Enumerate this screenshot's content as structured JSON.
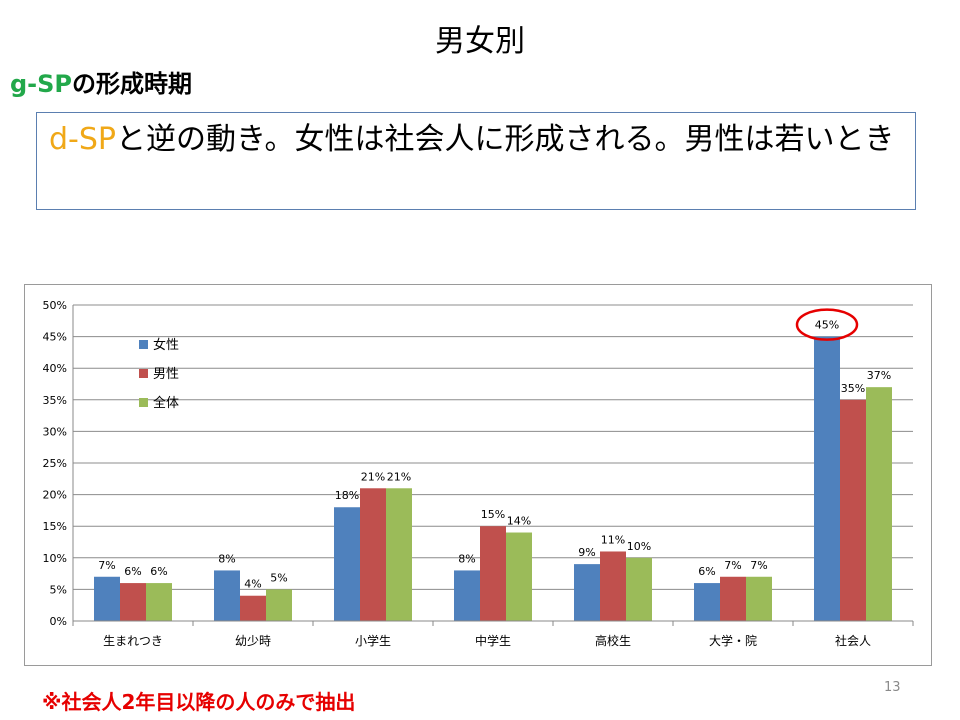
{
  "slide": {
    "title": "男女別",
    "heading_highlight": "g-SP",
    "heading_rest": "の形成時期",
    "callout_highlight": "d-SP",
    "callout_rest": "と逆の動き。女性は社会人に形成される。男性は若いとき",
    "footnote": "※社会人2年目以降の人のみで抽出",
    "page_number": "13"
  },
  "chart_data": {
    "type": "bar",
    "categories": [
      "生まれつき",
      "幼少時",
      "小学生",
      "中学生",
      "高校生",
      "大学・院",
      "社会人"
    ],
    "series": [
      {
        "name": "女性",
        "color": "#4f81bd",
        "values": [
          7,
          8,
          18,
          8,
          9,
          6,
          45
        ],
        "labels": [
          "7%",
          "8%",
          "18%",
          "8%",
          "9%",
          "6%",
          "45%"
        ]
      },
      {
        "name": "男性",
        "color": "#c0504d",
        "values": [
          6,
          4,
          21,
          15,
          11,
          7,
          35
        ],
        "labels": [
          "6%",
          "4%",
          "21%",
          "15%",
          "11%",
          "7%",
          "35%"
        ]
      },
      {
        "name": "全体",
        "color": "#9bbb59",
        "values": [
          6,
          5,
          21,
          14,
          10,
          7,
          37
        ],
        "labels": [
          "6%",
          "5%",
          "21%",
          "14%",
          "10%",
          "7%",
          "37%"
        ]
      }
    ],
    "ylim": [
      0,
      50
    ],
    "yticks": [
      "0%",
      "5%",
      "10%",
      "15%",
      "20%",
      "25%",
      "30%",
      "35%",
      "40%",
      "45%",
      "50%"
    ],
    "grid": true,
    "legend_position": "top-left",
    "highlight": "社会人 女性 45% circled in red",
    "highlight_color": "#e60000",
    "xlabel": "",
    "ylabel": ""
  }
}
